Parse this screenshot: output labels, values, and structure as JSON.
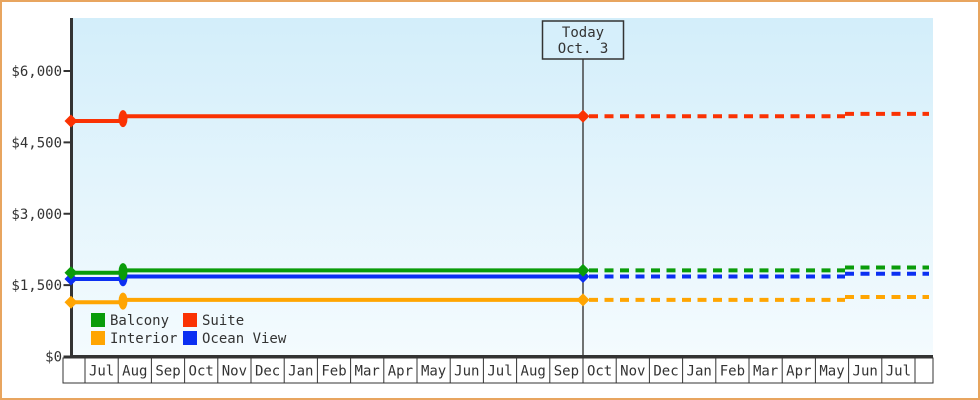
{
  "window": {
    "background": "#ffffff",
    "border_color": "#e8a55f",
    "plot_background_top": "#d3eefa",
    "plot_background_bottom": "#f4fbfe",
    "axis_color": "#333333"
  },
  "chart_data": {
    "type": "line",
    "y_axis": {
      "tick_labels": [
        "$0",
        "$1,500",
        "$3,000",
        "$4,500",
        "$6,000"
      ],
      "tick_values": [
        0,
        1500,
        3000,
        4500,
        6000
      ],
      "unit": "USD",
      "range": [
        0,
        6800
      ]
    },
    "x_axis": {
      "categories": [
        "Jul",
        "Aug",
        "Sep",
        "Oct",
        "Nov",
        "Dec",
        "Jan",
        "Feb",
        "Mar",
        "Apr",
        "May",
        "Jun",
        "Jul",
        "Aug",
        "Sep",
        "Oct",
        "Nov",
        "Dec",
        "Jan",
        "Feb",
        "Mar",
        "Apr",
        "May",
        "Jun",
        "Jul"
      ],
      "today_at_category_index": 15
    },
    "today_marker": {
      "line1": "Today",
      "line2": "Oct. 3"
    },
    "forecast_style": "dashed",
    "series": [
      {
        "name": "Balcony",
        "color": "#0a9c0a",
        "values": {
          "jul": 1760,
          "aug_through_today": 1810,
          "forecast_end": 1870
        }
      },
      {
        "name": "Suite",
        "color": "#fa3203",
        "values": {
          "jul": 4950,
          "aug_through_today": 5050,
          "forecast_end": 5100
        }
      },
      {
        "name": "Interior",
        "color": "#ffa502",
        "values": {
          "jul": 1140,
          "aug_through_today": 1190,
          "forecast_end": 1250
        }
      },
      {
        "name": "Ocean View",
        "color": "#0b2ff2",
        "values": {
          "jul": 1630,
          "aug_through_today": 1680,
          "forecast_end": 1740
        }
      }
    ],
    "legend": {
      "position": "bottom-left",
      "items": [
        {
          "label": "Balcony",
          "color": "#0a9c0a"
        },
        {
          "label": "Suite",
          "color": "#fa3203"
        },
        {
          "label": "Interior",
          "color": "#ffa502"
        },
        {
          "label": "Ocean View",
          "color": "#0b2ff2"
        }
      ]
    }
  }
}
